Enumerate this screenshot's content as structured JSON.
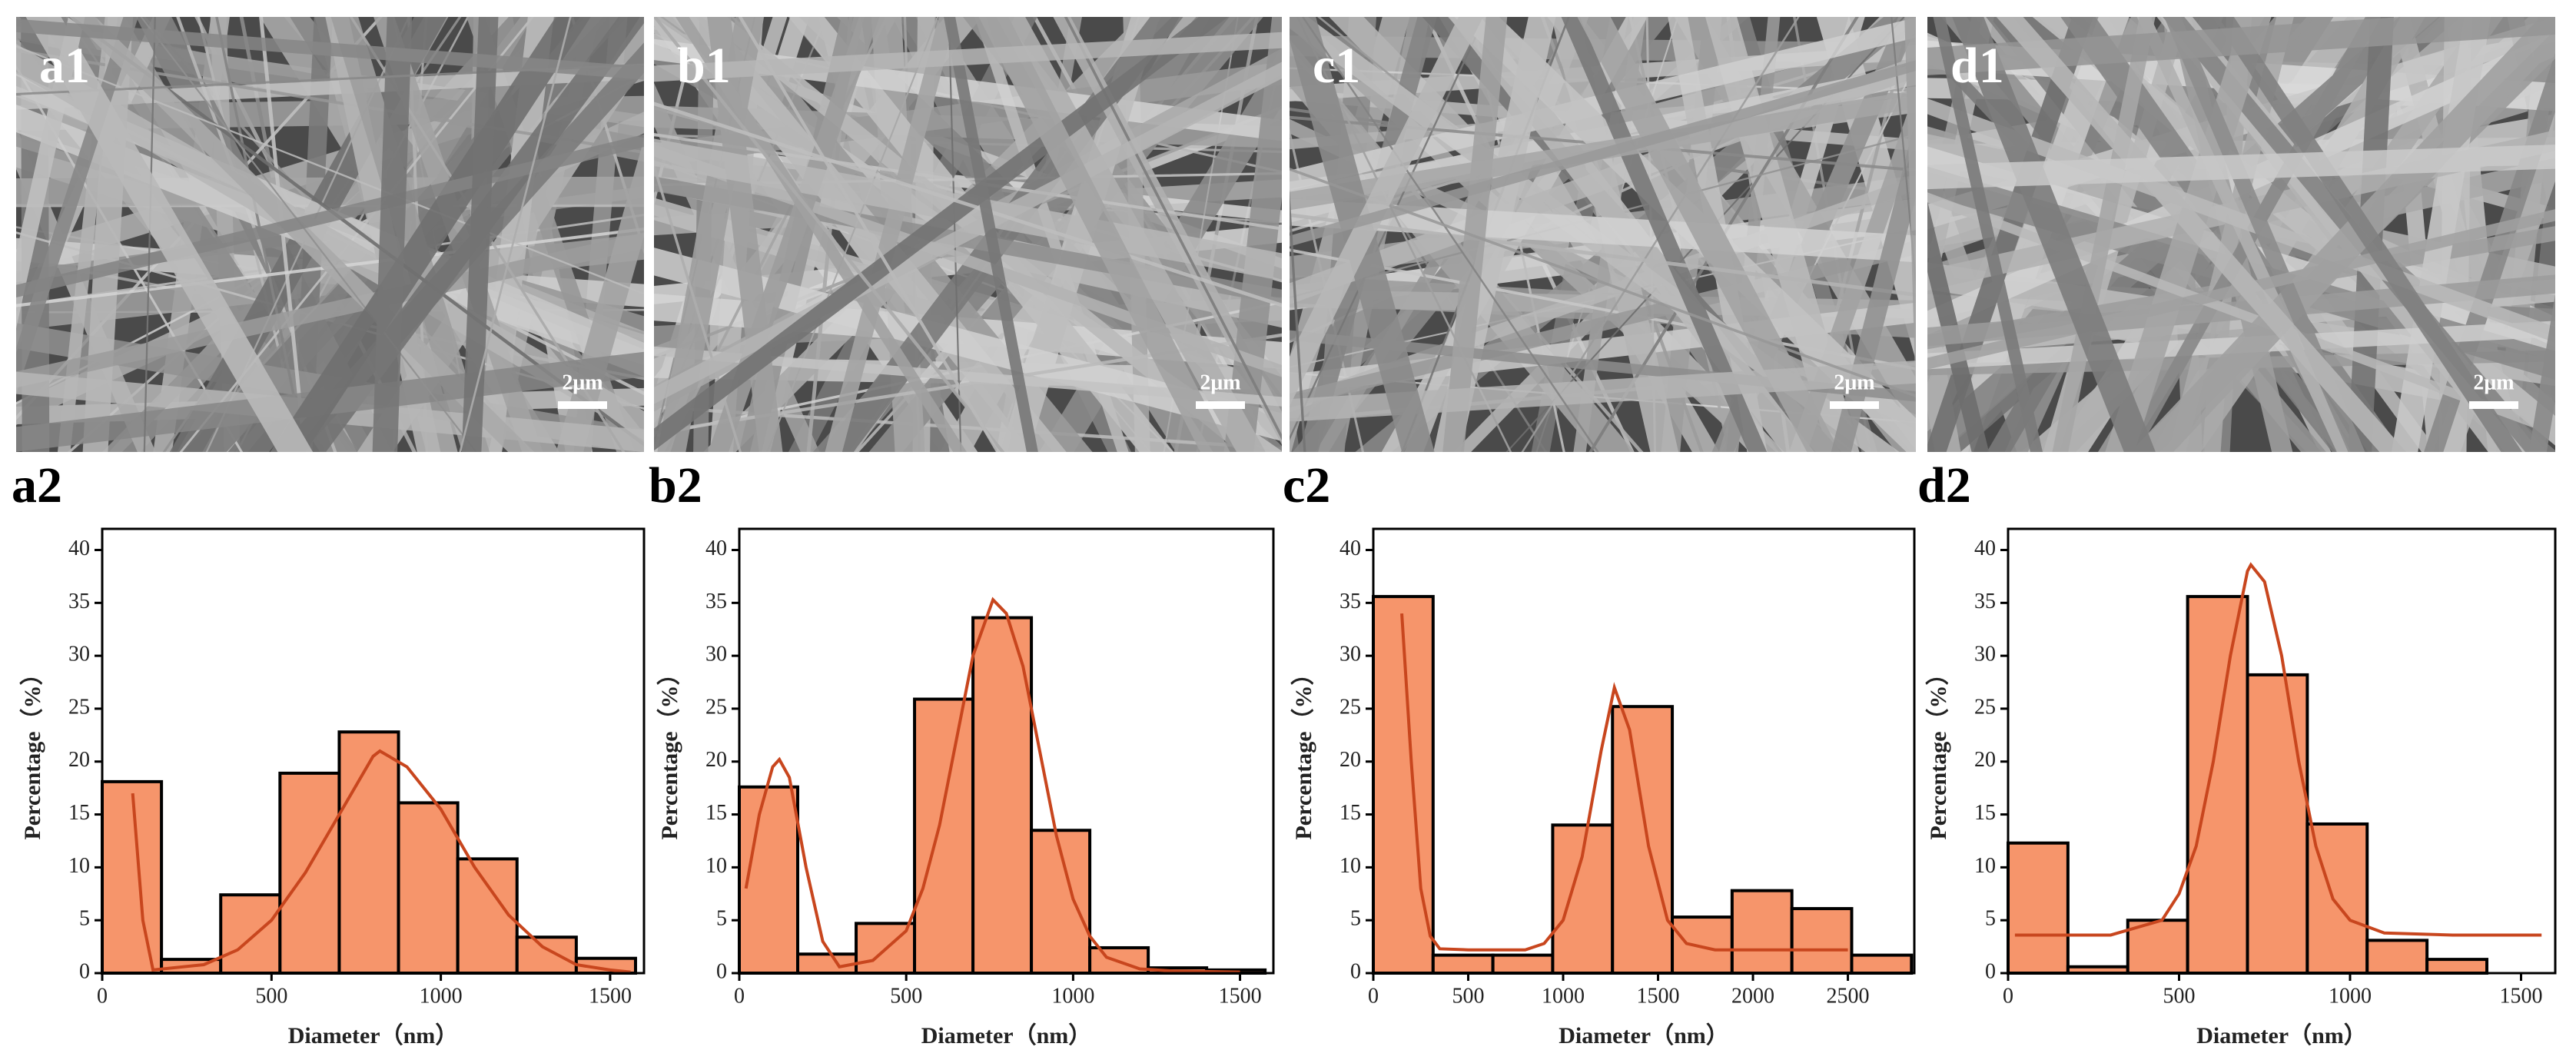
{
  "images": [
    {
      "label": "a1",
      "scale_bar": "2μm"
    },
    {
      "label": "b1",
      "scale_bar": "2μm"
    },
    {
      "label": "c1",
      "scale_bar": "2μm"
    },
    {
      "label": "d1",
      "scale_bar": "2μm"
    }
  ],
  "chart_data": [
    {
      "type": "histogram",
      "panel_label": "a2",
      "x_label": "Diameter（nm）",
      "y_label": "Percentage（%）",
      "bins": [
        0,
        175,
        350,
        525,
        700,
        875,
        1050,
        1225,
        1400,
        1575
      ],
      "values": [
        18.1,
        1.3,
        7.4,
        18.9,
        22.8,
        16.1,
        10.8,
        3.4,
        1.4
      ],
      "color": "#f6956b",
      "edge_color": "#000000",
      "fit": {
        "color": "#c8461e",
        "x": [
          90,
          120,
          150,
          300,
          400,
          500,
          600,
          700,
          800,
          820,
          900,
          1000,
          1100,
          1200,
          1300,
          1400,
          1500,
          1560
        ],
        "y": [
          17,
          5,
          0.3,
          0.8,
          2.2,
          5,
          9.5,
          15,
          20.5,
          21,
          19.5,
          15.5,
          10,
          5.5,
          2.5,
          0.8,
          0.3,
          0.1
        ]
      },
      "xlim": [
        0,
        1600
      ],
      "xticks": [
        0,
        500,
        1000,
        1500
      ],
      "ylim": [
        0,
        42
      ],
      "yticks": [
        0,
        5,
        10,
        15,
        20,
        25,
        30,
        35,
        40
      ]
    },
    {
      "type": "histogram",
      "panel_label": "b2",
      "x_label": "Diameter（nm）",
      "y_label": "Percentage（%）",
      "bins": [
        0,
        175,
        350,
        525,
        700,
        875,
        1050,
        1225,
        1400,
        1575
      ],
      "values": [
        17.6,
        1.8,
        4.7,
        25.9,
        33.6,
        13.5,
        2.4,
        0.5,
        0.3
      ],
      "color": "#f6956b",
      "edge_color": "#000000",
      "fit": {
        "color": "#c8461e",
        "x": [
          20,
          60,
          100,
          120,
          150,
          200,
          250,
          300,
          400,
          500,
          550,
          600,
          650,
          700,
          760,
          800,
          850,
          900,
          950,
          1000,
          1050,
          1100,
          1200,
          1300,
          1500
        ],
        "y": [
          8,
          15,
          19.5,
          20.2,
          18.5,
          10,
          3,
          0.6,
          1.2,
          4,
          8,
          14,
          22,
          30,
          35.3,
          34,
          29,
          21,
          13,
          7,
          3.5,
          1.5,
          0.4,
          0.2,
          0.1
        ]
      },
      "xlim": [
        0,
        1600
      ],
      "xticks": [
        0,
        500,
        1000,
        1500
      ],
      "ylim": [
        0,
        42
      ],
      "yticks": [
        0,
        5,
        10,
        15,
        20,
        25,
        30,
        35,
        40
      ]
    },
    {
      "type": "histogram",
      "panel_label": "c2",
      "x_label": "Diameter（nm）",
      "y_label": "Percentage（%）",
      "bins": [
        0,
        315,
        630,
        945,
        1260,
        1575,
        1890,
        2205,
        2520,
        2835
      ],
      "values": [
        35.6,
        1.7,
        1.7,
        14,
        25.2,
        5.3,
        7.8,
        6.1,
        1.7
      ],
      "color": "#f6956b",
      "edge_color": "#000000",
      "fit": {
        "color": "#c8461e",
        "x": [
          150,
          200,
          250,
          300,
          350,
          500,
          800,
          900,
          1000,
          1100,
          1200,
          1270,
          1350,
          1450,
          1550,
          1650,
          1800,
          2000,
          2500
        ],
        "y": [
          34,
          20,
          8,
          3.5,
          2.3,
          2.2,
          2.2,
          2.8,
          5,
          11,
          21,
          27,
          23,
          12,
          5,
          2.8,
          2.2,
          2.2,
          2.2
        ]
      },
      "xlim": [
        0,
        2850
      ],
      "xticks": [
        0,
        500,
        1000,
        1500,
        2000,
        2500
      ],
      "ylim": [
        0,
        42
      ],
      "yticks": [
        0,
        5,
        10,
        15,
        20,
        25,
        30,
        35,
        40
      ]
    },
    {
      "type": "histogram",
      "panel_label": "d2",
      "x_label": "Diameter（nm）",
      "y_label": "Percentage（%）",
      "bins": [
        0,
        175,
        350,
        525,
        700,
        875,
        1050,
        1225,
        1400
      ],
      "values": [
        12.3,
        0.6,
        5,
        35.6,
        28.2,
        14.1,
        3.1,
        1.3
      ],
      "color": "#f6956b",
      "edge_color": "#000000",
      "fit": {
        "color": "#c8461e",
        "x": [
          20,
          300,
          450,
          500,
          550,
          600,
          650,
          700,
          710,
          750,
          800,
          850,
          900,
          950,
          1000,
          1100,
          1300,
          1560
        ],
        "y": [
          3.6,
          3.6,
          5,
          7.5,
          12,
          20,
          30,
          38,
          38.6,
          37,
          30,
          20,
          12,
          7,
          5,
          3.8,
          3.6,
          3.6
        ]
      },
      "xlim": [
        0,
        1600
      ],
      "xticks": [
        0,
        500,
        1000,
        1500
      ],
      "ylim": [
        0,
        42
      ],
      "yticks": [
        0,
        5,
        10,
        15,
        20,
        25,
        30,
        35,
        40
      ]
    }
  ]
}
